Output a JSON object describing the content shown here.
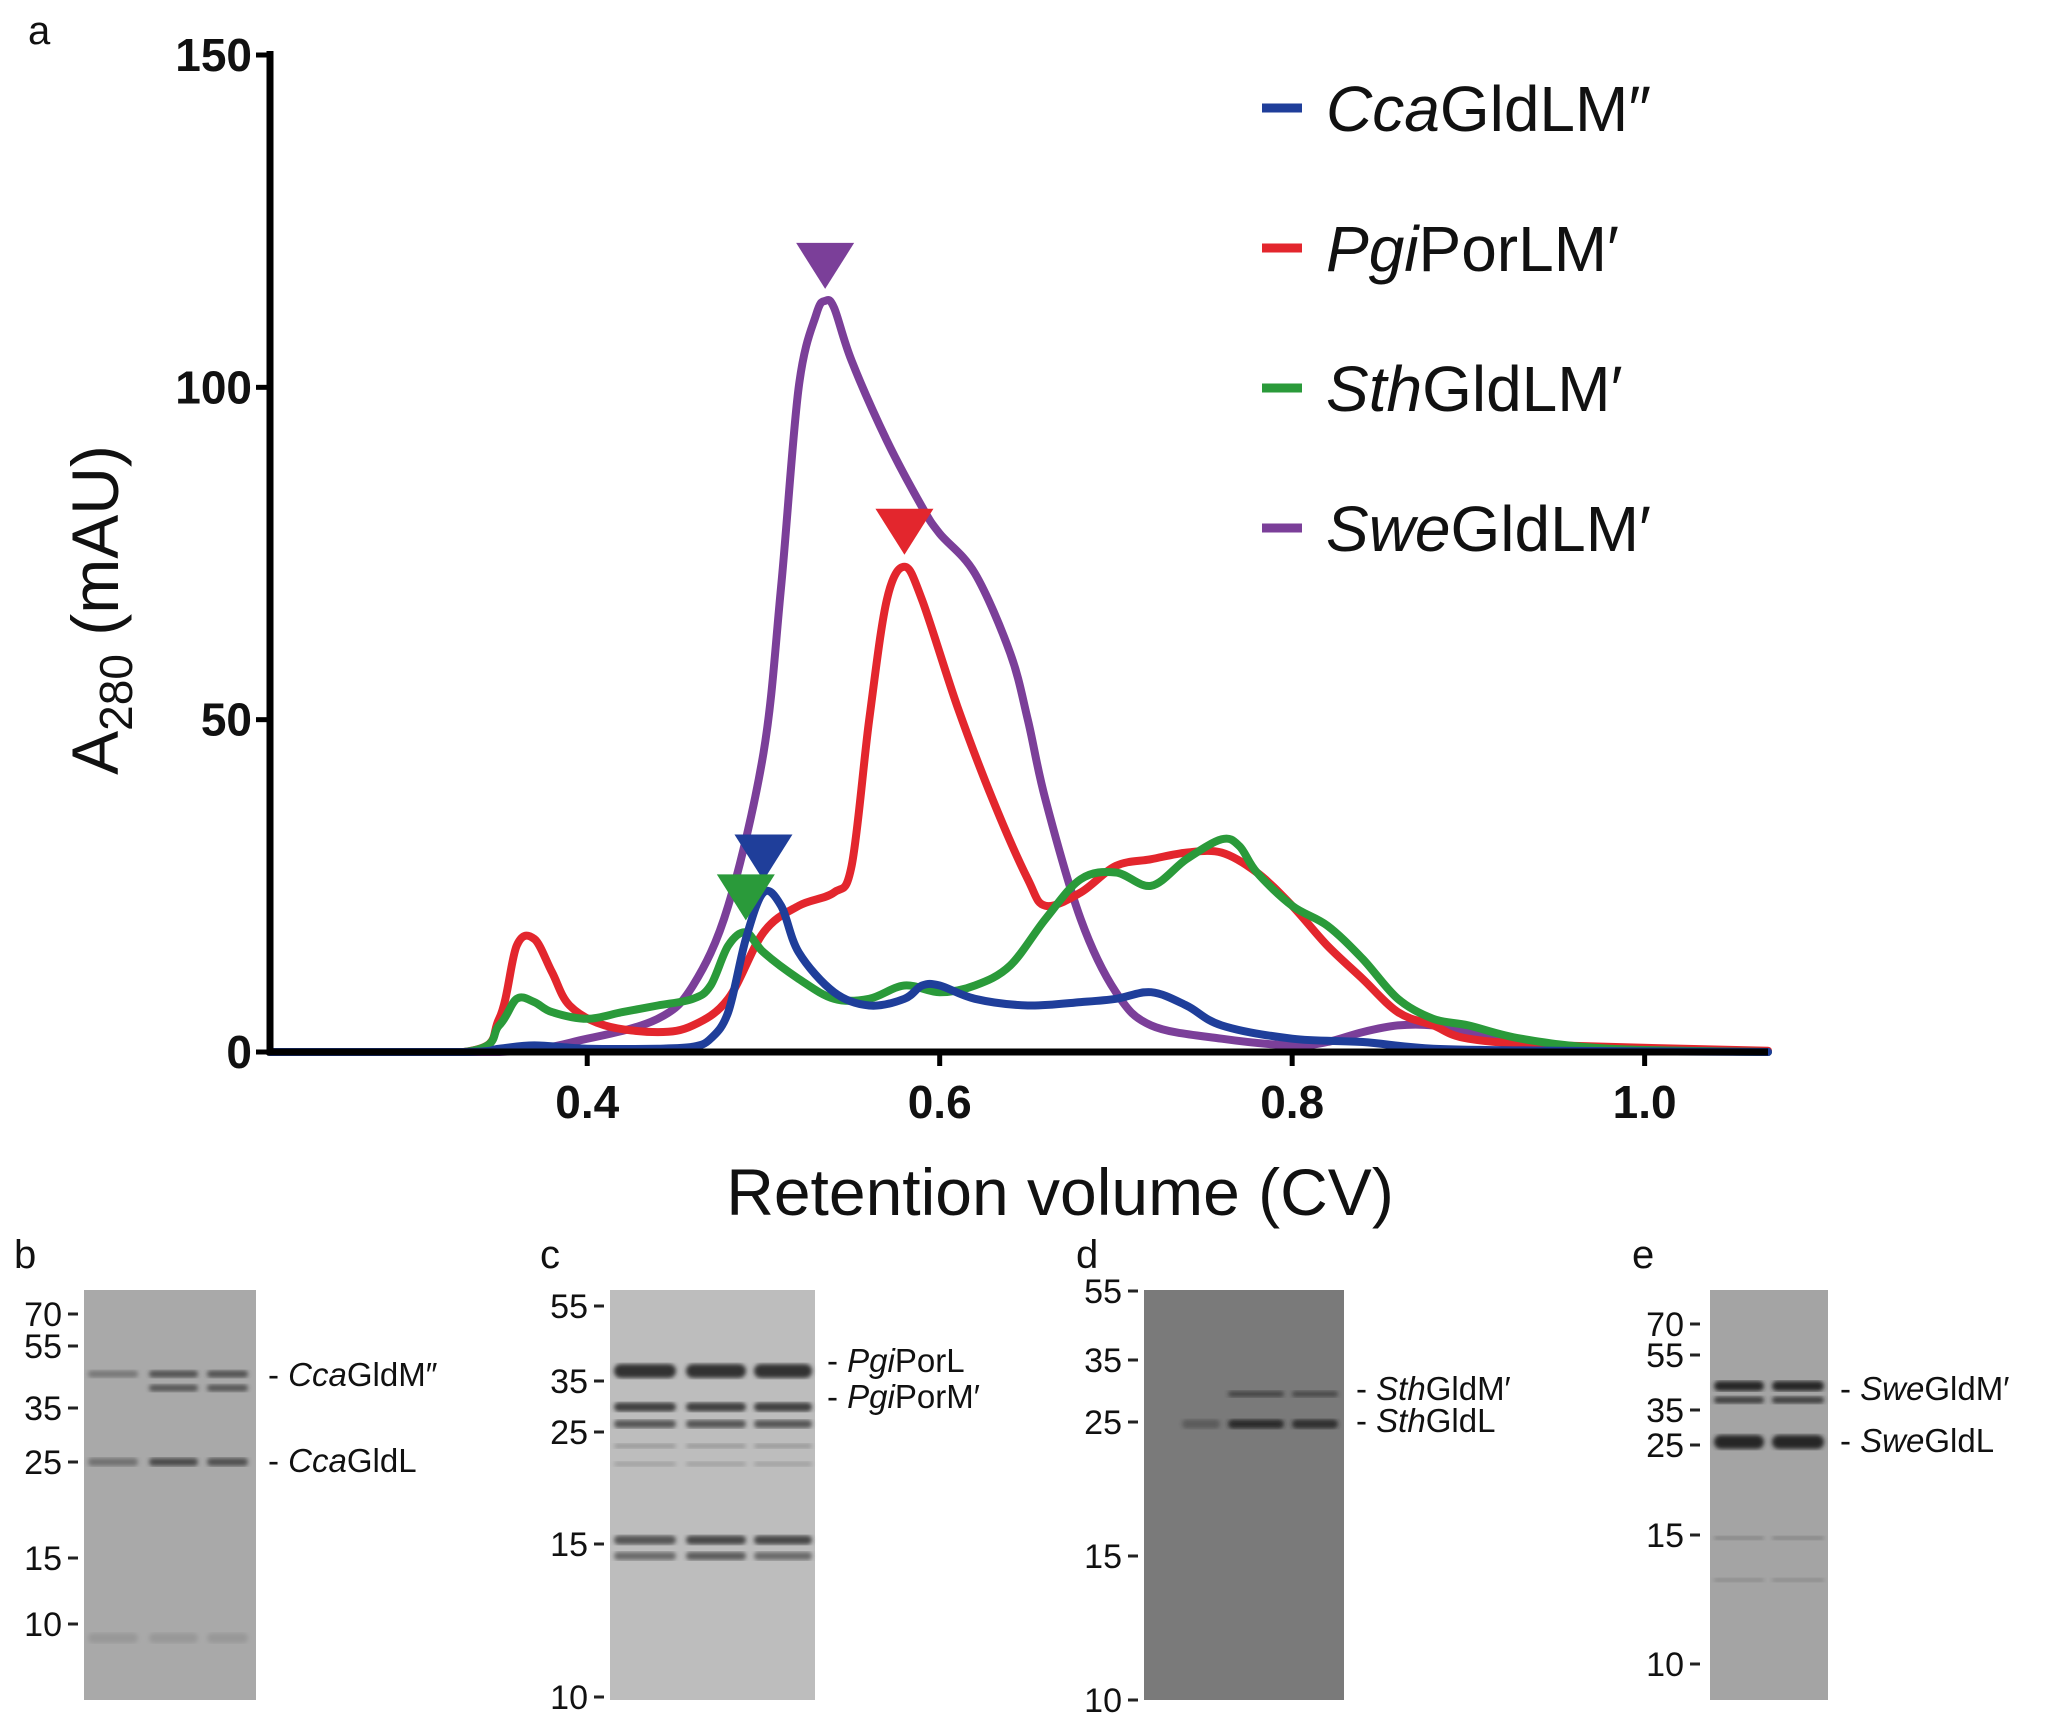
{
  "panels": {
    "a": "a",
    "b": "b",
    "c": "c",
    "d": "d",
    "e": "e"
  },
  "chart_data": {
    "type": "line",
    "xlabel": "Retention volume (CV)",
    "ylabel_main": "A",
    "ylabel_sub": "280",
    "ylabel_unit": " (mAU)",
    "xlim": [
      0.22,
      1.07
    ],
    "ylim": [
      0,
      150
    ],
    "x_ticks": [
      0.4,
      0.6,
      0.8,
      1.0
    ],
    "x_tick_labels": [
      "0.4",
      "0.6",
      "0.8",
      "1.0"
    ],
    "y_ticks": [
      0,
      50,
      100,
      150
    ],
    "y_tick_labels": [
      "0",
      "50",
      "100",
      "150"
    ],
    "grid": false,
    "legend_position": "top-right",
    "series": [
      {
        "name_italic": "Cca",
        "name_rest": "GldLM″",
        "color": "#1f3e9a",
        "peak_marker": [
          0.5,
          24
        ],
        "points": [
          [
            0.22,
            0
          ],
          [
            0.33,
            0
          ],
          [
            0.35,
            0.5
          ],
          [
            0.37,
            1
          ],
          [
            0.4,
            0.5
          ],
          [
            0.44,
            0.5
          ],
          [
            0.46,
            0.8
          ],
          [
            0.47,
            2
          ],
          [
            0.48,
            6
          ],
          [
            0.49,
            17
          ],
          [
            0.5,
            24
          ],
          [
            0.51,
            22
          ],
          [
            0.52,
            15
          ],
          [
            0.54,
            9
          ],
          [
            0.56,
            7
          ],
          [
            0.58,
            8
          ],
          [
            0.59,
            10
          ],
          [
            0.6,
            10
          ],
          [
            0.62,
            8
          ],
          [
            0.65,
            7
          ],
          [
            0.68,
            7.5
          ],
          [
            0.7,
            8
          ],
          [
            0.72,
            9
          ],
          [
            0.74,
            7
          ],
          [
            0.76,
            4
          ],
          [
            0.8,
            2
          ],
          [
            0.84,
            1.5
          ],
          [
            0.88,
            0.5
          ],
          [
            0.95,
            0.2
          ],
          [
            1.07,
            0
          ]
        ]
      },
      {
        "name_italic": "Pgi",
        "name_rest": "PorLM′",
        "color": "#e3262d",
        "peak_marker": [
          0.58,
          73
        ],
        "points": [
          [
            0.22,
            0
          ],
          [
            0.33,
            0
          ],
          [
            0.35,
            5
          ],
          [
            0.36,
            16
          ],
          [
            0.37,
            17
          ],
          [
            0.38,
            12
          ],
          [
            0.39,
            7
          ],
          [
            0.41,
            4
          ],
          [
            0.44,
            3
          ],
          [
            0.46,
            4
          ],
          [
            0.48,
            8
          ],
          [
            0.5,
            18
          ],
          [
            0.52,
            22
          ],
          [
            0.54,
            24
          ],
          [
            0.55,
            28
          ],
          [
            0.56,
            50
          ],
          [
            0.57,
            68
          ],
          [
            0.58,
            73
          ],
          [
            0.59,
            68
          ],
          [
            0.61,
            52
          ],
          [
            0.63,
            38
          ],
          [
            0.65,
            26
          ],
          [
            0.66,
            22
          ],
          [
            0.68,
            24
          ],
          [
            0.7,
            28
          ],
          [
            0.72,
            29
          ],
          [
            0.74,
            30
          ],
          [
            0.76,
            30
          ],
          [
            0.78,
            27
          ],
          [
            0.8,
            22
          ],
          [
            0.82,
            16
          ],
          [
            0.84,
            11
          ],
          [
            0.86,
            6
          ],
          [
            0.88,
            4
          ],
          [
            0.9,
            2
          ],
          [
            0.95,
            1
          ],
          [
            1.07,
            0.2
          ]
        ]
      },
      {
        "name_italic": "Sth",
        "name_rest": "GldLM′",
        "color": "#2a9a3a",
        "peak_marker": [
          0.49,
          18
        ],
        "points": [
          [
            0.22,
            0
          ],
          [
            0.33,
            0
          ],
          [
            0.35,
            4
          ],
          [
            0.36,
            8
          ],
          [
            0.37,
            7.5
          ],
          [
            0.38,
            6
          ],
          [
            0.4,
            5
          ],
          [
            0.42,
            6
          ],
          [
            0.44,
            7
          ],
          [
            0.46,
            8
          ],
          [
            0.47,
            10
          ],
          [
            0.48,
            16
          ],
          [
            0.49,
            18
          ],
          [
            0.5,
            15
          ],
          [
            0.52,
            11
          ],
          [
            0.54,
            8
          ],
          [
            0.56,
            8
          ],
          [
            0.58,
            10
          ],
          [
            0.6,
            9
          ],
          [
            0.62,
            10
          ],
          [
            0.64,
            13
          ],
          [
            0.66,
            20
          ],
          [
            0.68,
            26
          ],
          [
            0.7,
            27
          ],
          [
            0.72,
            25
          ],
          [
            0.74,
            29
          ],
          [
            0.76,
            32
          ],
          [
            0.77,
            31
          ],
          [
            0.78,
            27
          ],
          [
            0.8,
            22
          ],
          [
            0.82,
            19
          ],
          [
            0.84,
            14
          ],
          [
            0.86,
            8
          ],
          [
            0.88,
            5
          ],
          [
            0.9,
            4
          ],
          [
            0.93,
            2
          ],
          [
            0.98,
            0.5
          ],
          [
            1.07,
            0
          ]
        ]
      },
      {
        "name_italic": "Swe",
        "name_rest": "GldLM′",
        "color": "#7b3f99",
        "peak_marker": [
          0.535,
          113
        ],
        "points": [
          [
            0.22,
            0
          ],
          [
            0.35,
            0
          ],
          [
            0.4,
            2
          ],
          [
            0.44,
            5
          ],
          [
            0.46,
            10
          ],
          [
            0.48,
            22
          ],
          [
            0.5,
            45
          ],
          [
            0.51,
            70
          ],
          [
            0.52,
            100
          ],
          [
            0.53,
            111
          ],
          [
            0.535,
            113
          ],
          [
            0.54,
            112
          ],
          [
            0.55,
            104
          ],
          [
            0.57,
            92
          ],
          [
            0.59,
            82
          ],
          [
            0.6,
            78
          ],
          [
            0.62,
            72
          ],
          [
            0.64,
            60
          ],
          [
            0.65,
            50
          ],
          [
            0.66,
            38
          ],
          [
            0.68,
            20
          ],
          [
            0.7,
            9
          ],
          [
            0.72,
            4
          ],
          [
            0.76,
            2
          ],
          [
            0.8,
            1
          ],
          [
            0.82,
            1.5
          ],
          [
            0.84,
            3
          ],
          [
            0.86,
            4
          ],
          [
            0.88,
            4
          ],
          [
            0.9,
            3
          ],
          [
            0.94,
            1
          ],
          [
            1.07,
            0
          ]
        ]
      }
    ]
  },
  "gels": [
    {
      "panel": "b",
      "mw_labels": [
        "70",
        "55",
        "35",
        "25",
        "15",
        "10"
      ],
      "mw_values": [
        70,
        55,
        35,
        25,
        15,
        10
      ],
      "bands": [
        {
          "italic": "Cca",
          "rest": "GldM″"
        },
        {
          "italic": "Cca",
          "rest": "GldL"
        }
      ],
      "background": "#a9a9a9"
    },
    {
      "panel": "c",
      "mw_labels": [
        "55",
        "35",
        "25",
        "15",
        "10"
      ],
      "mw_values": [
        55,
        35,
        25,
        15,
        10
      ],
      "bands": [
        {
          "italic": "Pgi",
          "rest": "PorL"
        },
        {
          "italic": "Pgi",
          "rest": "PorM′"
        }
      ],
      "background": "#bdbdbd"
    },
    {
      "panel": "d",
      "mw_labels": [
        "55",
        "35",
        "25",
        "15",
        "10"
      ],
      "mw_values": [
        55,
        35,
        25,
        15,
        10
      ],
      "bands": [
        {
          "italic": "Sth",
          "rest": "GldM′"
        },
        {
          "italic": "Sth",
          "rest": "GldL"
        }
      ],
      "background": "#7a7a7a"
    },
    {
      "panel": "e",
      "mw_labels": [
        "70",
        "55",
        "35",
        "25",
        "15",
        "10"
      ],
      "mw_values": [
        70,
        55,
        35,
        25,
        15,
        10
      ],
      "bands": [
        {
          "italic": "Swe",
          "rest": "GldM′"
        },
        {
          "italic": "Swe",
          "rest": "GldL"
        }
      ],
      "background": "#a4a4a4"
    }
  ]
}
